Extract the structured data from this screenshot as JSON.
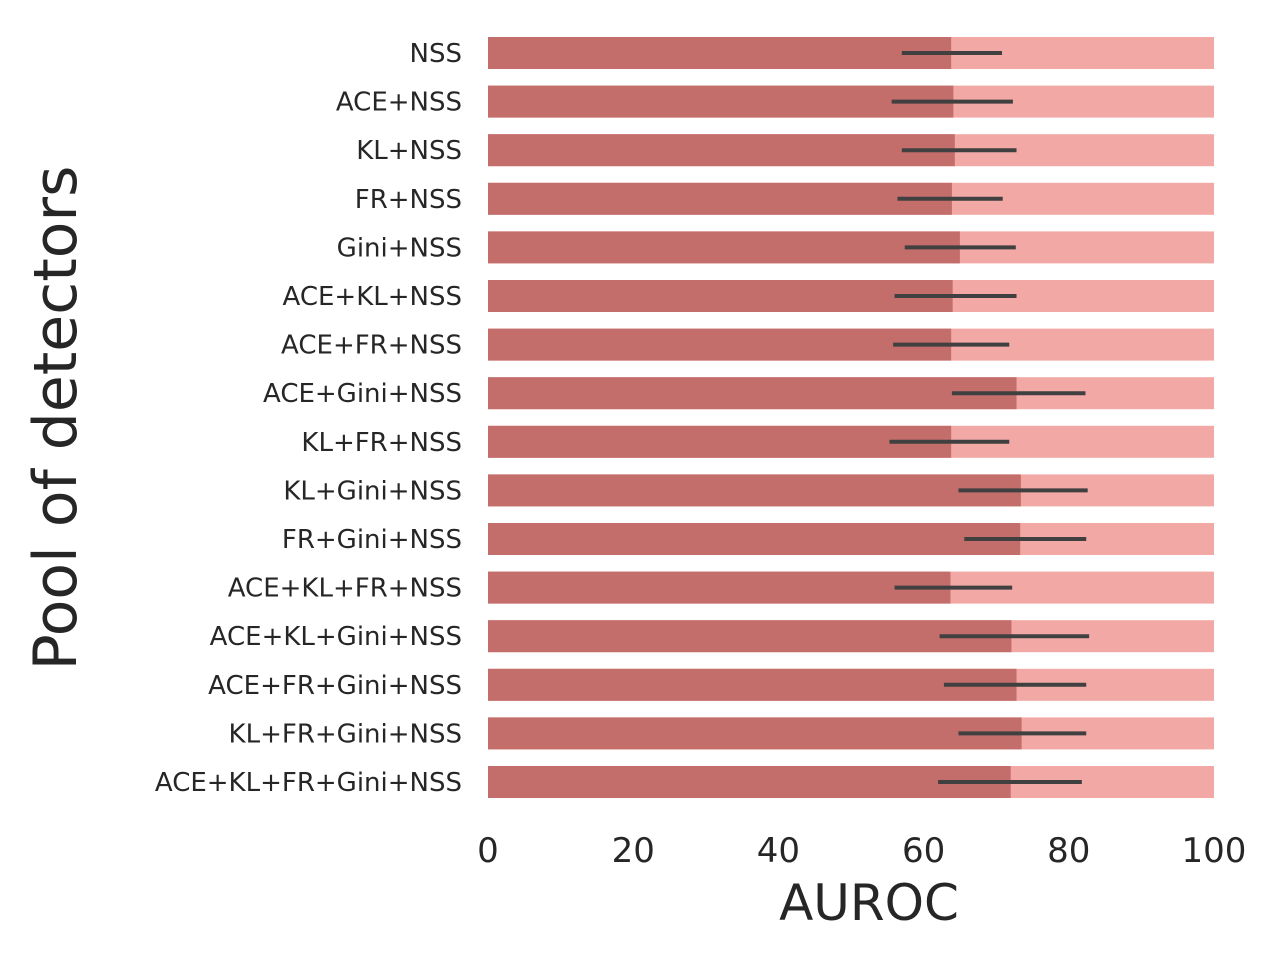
{
  "chart_data": {
    "type": "bar",
    "orientation": "horizontal",
    "xlabel": "AUROC",
    "ylabel": "Pool of detectors",
    "xlim": [
      0,
      100
    ],
    "xticks": [
      0,
      20,
      40,
      60,
      80,
      100
    ],
    "grid": false,
    "background_bar_value": 100,
    "categories": [
      "NSS",
      "ACE+NSS",
      "KL+NSS",
      "FR+NSS",
      "Gini+NSS",
      "ACE+KL+NSS",
      "ACE+FR+NSS",
      "ACE+Gini+NSS",
      "KL+FR+NSS",
      "KL+Gini+NSS",
      "FR+Gini+NSS",
      "ACE+KL+FR+NSS",
      "ACE+KL+Gini+NSS",
      "ACE+FR+Gini+NSS",
      "KL+FR+Gini+NSS",
      "ACE+KL+FR+Gini+NSS"
    ],
    "values": [
      63.8,
      64.1,
      64.3,
      63.9,
      65.0,
      64.0,
      63.8,
      72.8,
      63.8,
      73.4,
      73.3,
      63.7,
      72.1,
      72.8,
      73.5,
      72.0
    ],
    "error_low": [
      57.0,
      55.6,
      57.0,
      56.4,
      57.4,
      56.0,
      55.8,
      63.9,
      55.3,
      64.8,
      65.6,
      56.0,
      62.2,
      62.8,
      64.8,
      62.0
    ],
    "error_high": [
      70.8,
      72.3,
      72.8,
      70.9,
      72.7,
      72.8,
      71.8,
      82.3,
      71.8,
      82.6,
      82.4,
      72.2,
      82.8,
      82.4,
      82.4,
      81.8
    ],
    "colors": {
      "bar": "#c46e6c",
      "background_bar": "#f2a8a5",
      "error_bar": "#404040"
    }
  }
}
